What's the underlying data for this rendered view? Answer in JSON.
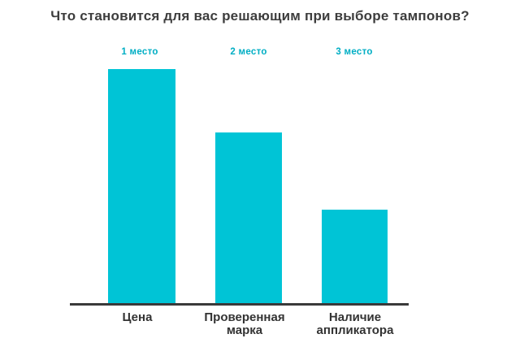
{
  "chart_data": {
    "type": "bar",
    "title": "Что становится для вас решающим при выборе тампонов?",
    "categories": [
      "Цена",
      "Проверенная марка",
      "Наличие аппликатора"
    ],
    "rank_labels": [
      "1 место",
      "2 место",
      "3 место"
    ],
    "values": [
      100,
      73,
      40
    ],
    "values_note": "No numeric y-axis shown; values are relative bar heights as % of tallest bar",
    "ylim": [
      0,
      100
    ],
    "xlabel": "",
    "ylabel": "",
    "grid": false,
    "legend": false,
    "colors": {
      "bar": "#00c4d6",
      "rank_label": "#00aec4",
      "title": "#3d3d3d",
      "category_label": "#333333",
      "axis": "#3a3a3a",
      "background": "#ffffff"
    }
  }
}
